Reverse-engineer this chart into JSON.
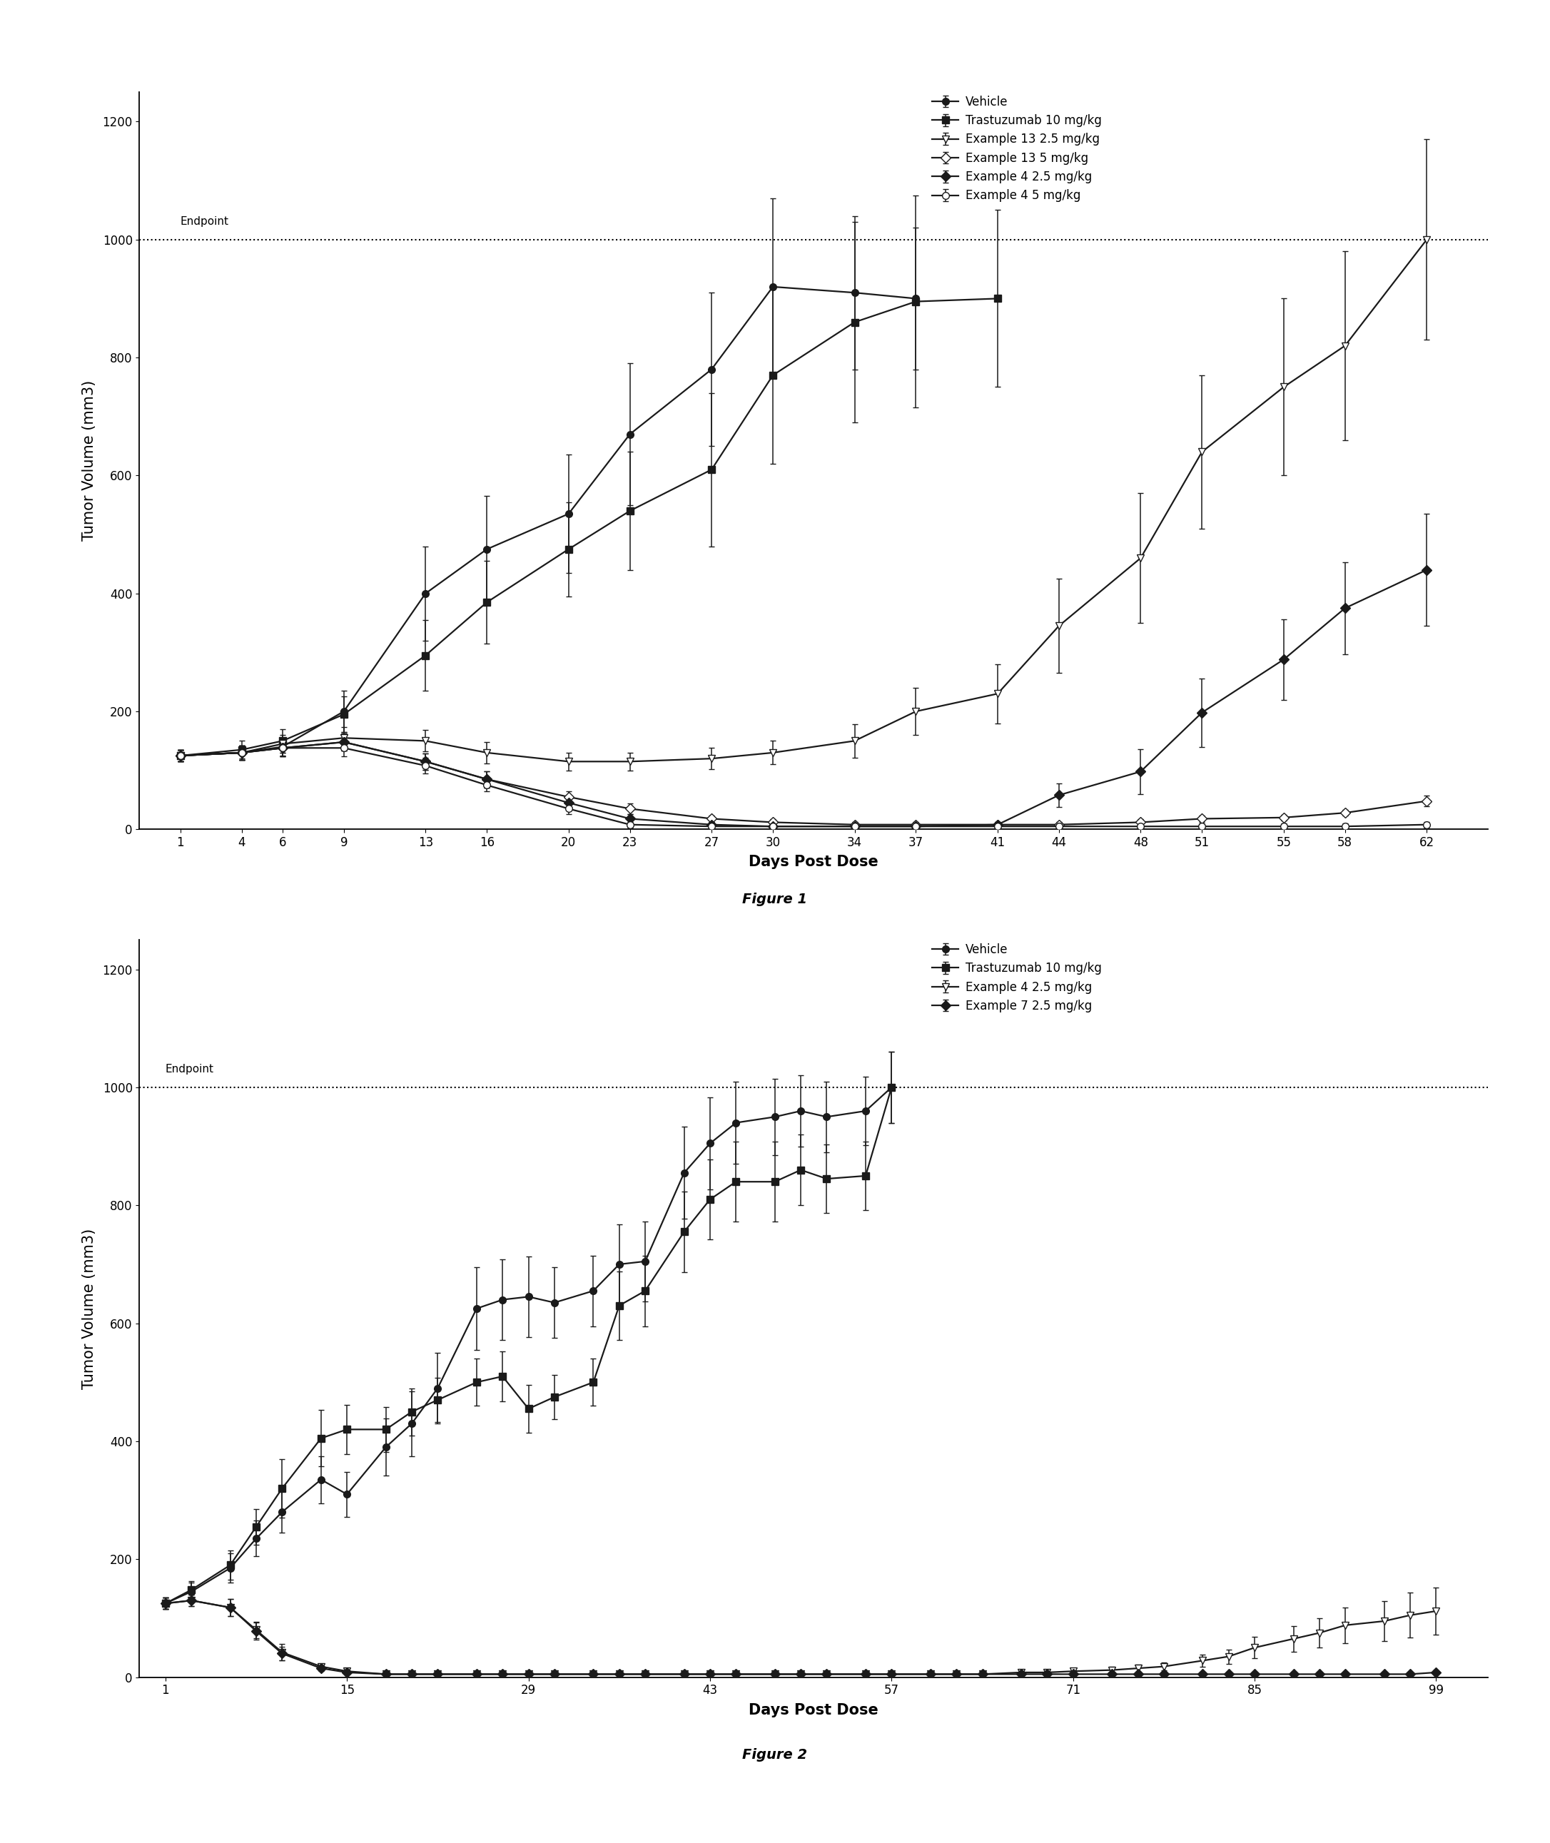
{
  "fig1": {
    "caption": "Figure 1",
    "xlabel": "Days Post Dose",
    "ylabel": "Tumor Volume (mm3)",
    "ylim": [
      0,
      1250
    ],
    "yticks": [
      0,
      200,
      400,
      600,
      800,
      1000,
      1200
    ],
    "endpoint_y": 1000,
    "endpoint_label": "Endpoint",
    "xtick_positions": [
      1,
      4,
      6,
      9,
      13,
      16,
      20,
      23,
      27,
      30,
      34,
      37,
      41,
      44,
      48,
      51,
      55,
      58,
      62
    ],
    "xtick_labels": [
      "1",
      "4",
      "6",
      "9",
      "13",
      "16",
      "20",
      "23",
      "27",
      "30",
      "34",
      "37",
      "41",
      "44",
      "48",
      "51",
      "55",
      "58",
      "62"
    ],
    "xlim": [
      -1,
      65
    ],
    "series": [
      {
        "label": "Vehicle",
        "marker": "o",
        "filled": true,
        "x": [
          1,
          4,
          6,
          9,
          13,
          16,
          20,
          23,
          27,
          30,
          34,
          37
        ],
        "y": [
          125,
          130,
          140,
          200,
          400,
          475,
          535,
          670,
          780,
          920,
          910,
          900
        ],
        "yerr": [
          10,
          12,
          15,
          35,
          80,
          90,
          100,
          120,
          130,
          150,
          130,
          120
        ]
      },
      {
        "label": "Trastuzumab 10 mg/kg",
        "marker": "s",
        "filled": true,
        "x": [
          1,
          4,
          6,
          9,
          13,
          16,
          20,
          23,
          27,
          30,
          34,
          37,
          41
        ],
        "y": [
          125,
          135,
          150,
          195,
          295,
          385,
          475,
          540,
          610,
          770,
          860,
          895,
          900
        ],
        "yerr": [
          10,
          15,
          20,
          30,
          60,
          70,
          80,
          100,
          130,
          150,
          170,
          180,
          150
        ]
      },
      {
        "label": "Example 13 2.5 mg/kg",
        "marker": "v",
        "filled": false,
        "x": [
          1,
          4,
          6,
          9,
          13,
          16,
          20,
          23,
          27,
          30,
          34,
          37,
          41,
          44,
          48,
          51,
          55,
          58,
          62
        ],
        "y": [
          125,
          130,
          145,
          155,
          150,
          130,
          115,
          115,
          120,
          130,
          150,
          200,
          230,
          345,
          460,
          640,
          750,
          820,
          1000
        ],
        "yerr": [
          10,
          12,
          15,
          18,
          18,
          18,
          15,
          15,
          18,
          20,
          28,
          40,
          50,
          80,
          110,
          130,
          150,
          160,
          170
        ]
      },
      {
        "label": "Example 13 5 mg/kg",
        "marker": "D",
        "filled": false,
        "x": [
          1,
          4,
          6,
          9,
          13,
          16,
          20,
          23,
          27,
          30,
          34,
          37,
          41,
          44,
          48,
          51,
          55,
          58,
          62
        ],
        "y": [
          125,
          130,
          138,
          148,
          115,
          85,
          55,
          35,
          18,
          12,
          8,
          8,
          8,
          8,
          12,
          18,
          20,
          28,
          48
        ],
        "yerr": [
          10,
          12,
          14,
          14,
          14,
          14,
          10,
          9,
          5,
          5,
          5,
          5,
          5,
          5,
          5,
          5,
          5,
          5,
          9
        ]
      },
      {
        "label": "Example 4 2.5 mg/kg",
        "marker": "D",
        "filled": true,
        "x": [
          1,
          4,
          6,
          9,
          13,
          16,
          20,
          23,
          27,
          30,
          34,
          37,
          41,
          44,
          48,
          51,
          55,
          58,
          62
        ],
        "y": [
          125,
          130,
          138,
          148,
          115,
          85,
          45,
          18,
          8,
          5,
          5,
          5,
          8,
          58,
          98,
          198,
          288,
          375,
          440
        ],
        "yerr": [
          10,
          12,
          14,
          14,
          14,
          14,
          9,
          8,
          5,
          5,
          5,
          5,
          5,
          20,
          38,
          58,
          68,
          78,
          95
        ]
      },
      {
        "label": "Example 4 5 mg/kg",
        "marker": "o",
        "filled": false,
        "x": [
          1,
          4,
          6,
          9,
          13,
          16,
          20,
          23,
          27,
          30,
          34,
          37,
          41,
          44,
          48,
          51,
          55,
          58,
          62
        ],
        "y": [
          125,
          130,
          138,
          138,
          108,
          75,
          35,
          8,
          5,
          5,
          5,
          5,
          5,
          5,
          5,
          5,
          5,
          5,
          8
        ],
        "yerr": [
          10,
          12,
          14,
          14,
          13,
          11,
          9,
          5,
          5,
          5,
          5,
          5,
          5,
          5,
          5,
          5,
          5,
          5,
          5
        ]
      }
    ]
  },
  "fig2": {
    "caption": "Figure 2",
    "xlabel": "Days Post Dose",
    "ylabel": "Tumor Volume (mm3)",
    "ylim": [
      0,
      1250
    ],
    "yticks": [
      0,
      200,
      400,
      600,
      800,
      1000,
      1200
    ],
    "endpoint_y": 1000,
    "endpoint_label": "Endpoint",
    "xtick_positions": [
      1,
      15,
      29,
      43,
      57,
      71,
      85,
      99
    ],
    "xtick_labels": [
      "1",
      "15",
      "29",
      "43",
      "57",
      "71",
      "85",
      "99"
    ],
    "xlim": [
      -1,
      103
    ],
    "series": [
      {
        "label": "Vehicle",
        "marker": "o",
        "filled": true,
        "x": [
          1,
          3,
          6,
          8,
          10,
          13,
          15,
          18,
          20,
          22,
          25,
          27,
          29,
          31,
          34,
          36,
          38,
          41,
          43,
          45,
          48,
          50,
          52,
          55,
          57
        ],
        "y": [
          125,
          145,
          185,
          235,
          280,
          335,
          310,
          390,
          430,
          490,
          625,
          640,
          645,
          635,
          655,
          700,
          705,
          855,
          905,
          940,
          950,
          960,
          950,
          960,
          1000
        ],
        "yerr": [
          10,
          15,
          25,
          30,
          35,
          40,
          38,
          48,
          55,
          60,
          70,
          68,
          68,
          60,
          60,
          68,
          68,
          78,
          78,
          70,
          65,
          60,
          60,
          58,
          60
        ]
      },
      {
        "label": "Trastuzumab 10 mg/kg",
        "marker": "s",
        "filled": true,
        "x": [
          1,
          3,
          6,
          8,
          10,
          13,
          15,
          18,
          20,
          22,
          25,
          27,
          29,
          31,
          34,
          36,
          38,
          41,
          43,
          45,
          48,
          50,
          52,
          55,
          57
        ],
        "y": [
          125,
          148,
          190,
          255,
          320,
          405,
          420,
          420,
          450,
          470,
          500,
          510,
          455,
          475,
          500,
          630,
          655,
          755,
          810,
          840,
          840,
          860,
          845,
          850,
          1000
        ],
        "yerr": [
          10,
          15,
          25,
          30,
          50,
          48,
          42,
          38,
          40,
          38,
          40,
          42,
          40,
          38,
          40,
          58,
          60,
          68,
          68,
          68,
          68,
          60,
          58,
          58,
          60
        ]
      },
      {
        "label": "Example 4 2.5 mg/kg",
        "marker": "v",
        "filled": false,
        "x": [
          1,
          3,
          6,
          8,
          10,
          13,
          15,
          18,
          20,
          22,
          25,
          27,
          29,
          31,
          34,
          36,
          38,
          41,
          43,
          45,
          48,
          50,
          52,
          55,
          57,
          60,
          62,
          64,
          67,
          69,
          71,
          74,
          76,
          78,
          81,
          83,
          85,
          88,
          90,
          92,
          95,
          97,
          99
        ],
        "y": [
          125,
          130,
          118,
          80,
          42,
          18,
          10,
          5,
          5,
          5,
          5,
          5,
          5,
          5,
          5,
          5,
          5,
          5,
          5,
          5,
          5,
          5,
          5,
          5,
          5,
          5,
          5,
          5,
          8,
          8,
          10,
          12,
          15,
          18,
          28,
          35,
          50,
          65,
          75,
          88,
          95,
          105,
          112
        ],
        "yerr": [
          10,
          10,
          14,
          14,
          14,
          5,
          3,
          3,
          3,
          3,
          3,
          3,
          3,
          3,
          3,
          3,
          3,
          3,
          3,
          3,
          3,
          3,
          3,
          3,
          3,
          3,
          3,
          3,
          3,
          3,
          4,
          5,
          6,
          7,
          10,
          12,
          18,
          22,
          25,
          30,
          34,
          38,
          40
        ]
      },
      {
        "label": "Example 7 2.5 mg/kg",
        "marker": "D",
        "filled": true,
        "x": [
          1,
          3,
          6,
          8,
          10,
          13,
          15,
          18,
          20,
          22,
          25,
          27,
          29,
          31,
          34,
          36,
          38,
          41,
          43,
          45,
          48,
          50,
          52,
          55,
          57,
          60,
          62,
          64,
          67,
          69,
          71,
          74,
          76,
          78,
          81,
          83,
          85,
          88,
          90,
          92,
          95,
          97,
          99
        ],
        "y": [
          125,
          130,
          118,
          78,
          40,
          15,
          8,
          5,
          5,
          5,
          5,
          5,
          5,
          5,
          5,
          5,
          5,
          5,
          5,
          5,
          5,
          5,
          5,
          5,
          5,
          5,
          5,
          5,
          5,
          5,
          5,
          5,
          5,
          5,
          5,
          5,
          5,
          5,
          5,
          5,
          5,
          5,
          8
        ],
        "yerr": [
          10,
          10,
          14,
          14,
          12,
          5,
          3,
          3,
          3,
          3,
          3,
          3,
          3,
          3,
          3,
          3,
          3,
          3,
          3,
          3,
          3,
          3,
          3,
          3,
          3,
          3,
          3,
          3,
          3,
          3,
          3,
          3,
          3,
          3,
          3,
          3,
          3,
          3,
          3,
          3,
          3,
          3,
          3
        ]
      }
    ]
  },
  "line_color": "#1a1a1a",
  "line_width": 1.6,
  "marker_size": 7,
  "capsize": 3,
  "elinewidth": 1.1,
  "fontsize_axis_label": 15,
  "fontsize_tick": 12,
  "fontsize_legend": 12,
  "fontsize_caption": 14,
  "fontsize_endpoint": 11
}
